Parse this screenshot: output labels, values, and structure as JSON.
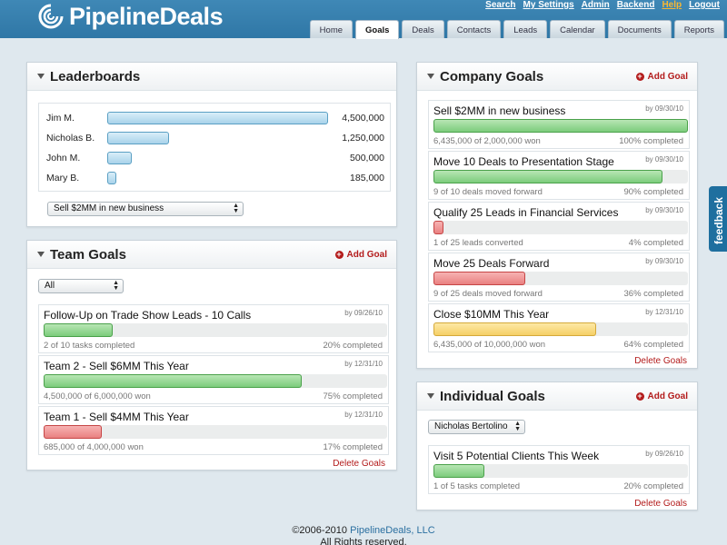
{
  "brand": {
    "name": "PipelineDeals"
  },
  "top_links": [
    "Search",
    "My Settings",
    "Admin",
    "Backend",
    "Help",
    "Logout"
  ],
  "tabs": [
    "Home",
    "Goals",
    "Deals",
    "Contacts",
    "Leads",
    "Calendar",
    "Documents",
    "Reports"
  ],
  "active_tab": "Goals",
  "leaderboards": {
    "title": "Leaderboards",
    "rows": [
      {
        "name": "Jim M.",
        "value": "4,500,000",
        "amount": 4500000
      },
      {
        "name": "Nicholas B.",
        "value": "1,250,000",
        "amount": 1250000
      },
      {
        "name": "John M.",
        "value": "500,000",
        "amount": 500000
      },
      {
        "name": "Mary B.",
        "value": "185,000",
        "amount": 185000
      }
    ],
    "max_amount": 4500000,
    "selected_goal": "Sell $2MM in new business"
  },
  "team_goals": {
    "title": "Team Goals",
    "add_label": "Add Goal",
    "filter": "All",
    "delete_label": "Delete Goals",
    "goals": [
      {
        "title": "Follow-Up on Trade Show Leads - 10 Calls",
        "by": "by 09/26/10",
        "progress": 0.2,
        "color": "green",
        "sub": "2 of 10 tasks completed",
        "pct": "20% completed"
      },
      {
        "title": "Team 2 - Sell $6MM This Year",
        "by": "by 12/31/10",
        "progress": 0.75,
        "color": "green",
        "sub": "4,500,000 of 6,000,000 won",
        "pct": "75% completed"
      },
      {
        "title": "Team 1 - Sell $4MM This Year",
        "by": "by 12/31/10",
        "progress": 0.17,
        "color": "red",
        "sub": "685,000 of 4,000,000 won",
        "pct": "17% completed"
      }
    ]
  },
  "company_goals": {
    "title": "Company Goals",
    "add_label": "Add Goal",
    "delete_label": "Delete Goals",
    "goals": [
      {
        "title": "Sell $2MM in new business",
        "by": "by 09/30/10",
        "progress": 1.0,
        "color": "green",
        "sub": "6,435,000 of 2,000,000 won",
        "pct": "100% completed"
      },
      {
        "title": "Move 10 Deals to Presentation Stage",
        "by": "by 09/30/10",
        "progress": 0.9,
        "color": "green",
        "sub": "9 of 10 deals moved forward",
        "pct": "90% completed"
      },
      {
        "title": "Qualify 25 Leads in Financial Services",
        "by": "by 09/30/10",
        "progress": 0.04,
        "color": "red",
        "sub": "1 of 25 leads converted",
        "pct": "4% completed"
      },
      {
        "title": "Move 25 Deals Forward",
        "by": "by 09/30/10",
        "progress": 0.36,
        "color": "red",
        "sub": "9 of 25 deals moved forward",
        "pct": "36% completed"
      },
      {
        "title": "Close $10MM This Year",
        "by": "by 12/31/10",
        "progress": 0.64,
        "color": "yellow",
        "sub": "6,435,000 of 10,000,000 won",
        "pct": "64% completed"
      }
    ]
  },
  "individual_goals": {
    "title": "Individual Goals",
    "add_label": "Add Goal",
    "delete_label": "Delete Goals",
    "person": "Nicholas Bertolino",
    "goals": [
      {
        "title": "Visit 5 Potential Clients This Week",
        "by": "by 09/26/10",
        "progress": 0.2,
        "color": "green",
        "sub": "1 of 5 tasks completed",
        "pct": "20% completed"
      }
    ]
  },
  "feedback_label": "feedback",
  "footer": {
    "copyright": "©2006-2010",
    "company": "PipelineDeals, LLC",
    "rights": "All Rights reserved."
  }
}
